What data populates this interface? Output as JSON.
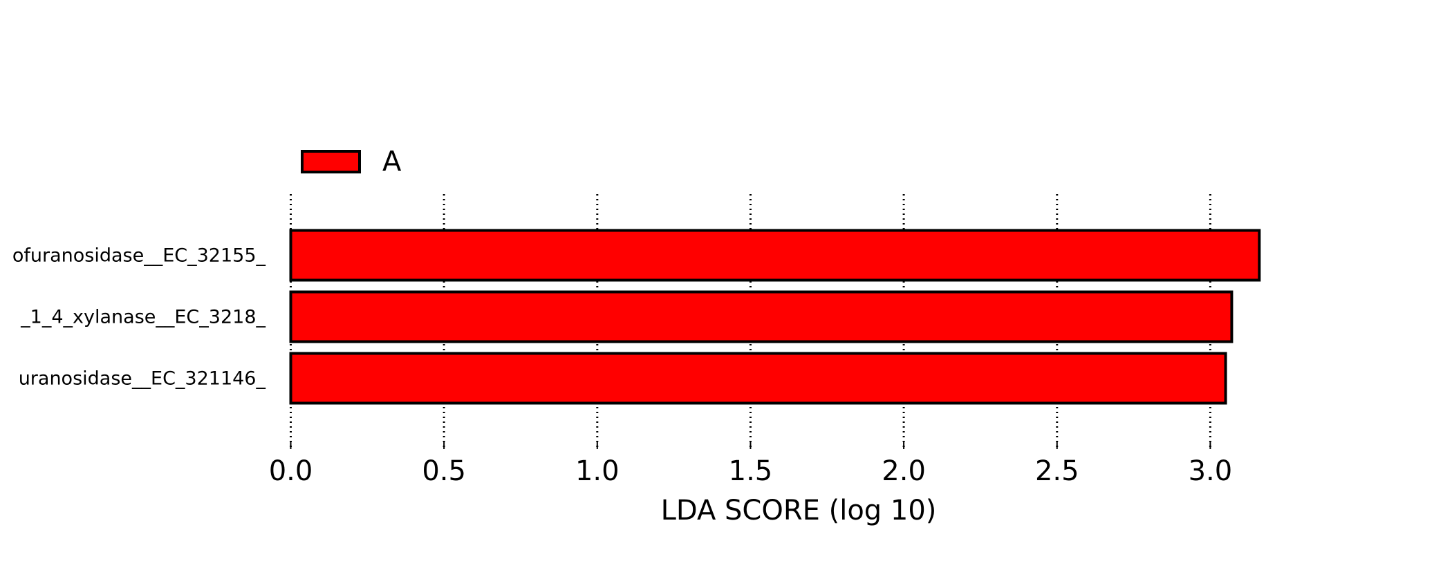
{
  "chart_data": {
    "type": "barh",
    "xlabel": "LDA SCORE (log 10)",
    "categories": [
      "ofuranosidase__EC_32155_",
      "_1_4_xylanase__EC_3218_",
      "uranosidase__EC_321146_"
    ],
    "series": [
      {
        "name": "A",
        "color": "#ff0000",
        "values": [
          3.16,
          3.07,
          3.05
        ]
      }
    ],
    "xlim": [
      0,
      3.16
    ],
    "xticks": [
      {
        "value": 0,
        "label": "0.0"
      },
      {
        "value": 0.5,
        "label": "0.5"
      },
      {
        "value": 1,
        "label": "1.0"
      },
      {
        "value": 1.5,
        "label": "1.5"
      },
      {
        "value": 2,
        "label": "2.0"
      },
      {
        "value": 2.5,
        "label": "2.5"
      },
      {
        "value": 3,
        "label": "3.0"
      }
    ],
    "grid": true
  }
}
